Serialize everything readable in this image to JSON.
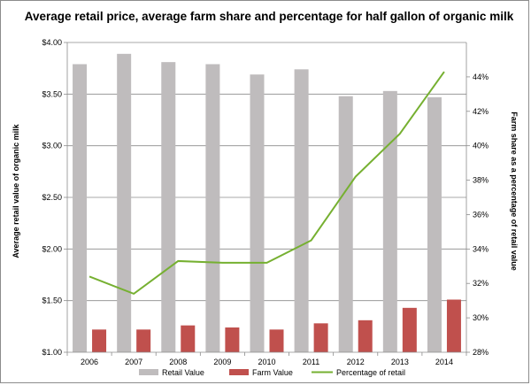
{
  "chart_data": {
    "type": "bar",
    "title": "Average retail price, average farm share and percentage for half gallon of organic milk",
    "categories": [
      "2006",
      "2007",
      "2008",
      "2009",
      "2010",
      "2011",
      "2012",
      "2013",
      "2014"
    ],
    "y_left": {
      "label": "Average retail value of organic milk",
      "range": [
        1.0,
        4.0
      ],
      "ticks": [
        "$1.00",
        "$1.50",
        "$2.00",
        "$2.50",
        "$3.00",
        "$3.50",
        "$4.00"
      ],
      "tick_values": [
        1.0,
        1.5,
        2.0,
        2.5,
        3.0,
        3.5,
        4.0
      ]
    },
    "y_right": {
      "label": "Farm share as a percentage of retail value",
      "range": [
        28,
        46
      ],
      "ticks": [
        "28%",
        "30%",
        "32%",
        "34%",
        "36%",
        "38%",
        "40%",
        "42%",
        "44%"
      ],
      "tick_values": [
        28,
        30,
        32,
        34,
        36,
        38,
        40,
        42,
        44
      ]
    },
    "series": [
      {
        "name": "Retail Value",
        "type": "bar",
        "axis": "left",
        "color": "#bfbcbd",
        "values": [
          3.79,
          3.89,
          3.81,
          3.79,
          3.69,
          3.74,
          3.48,
          3.53,
          3.47
        ]
      },
      {
        "name": "Farm Value",
        "type": "bar",
        "axis": "left",
        "color": "#c0504d",
        "values": [
          1.22,
          1.22,
          1.26,
          1.24,
          1.22,
          1.28,
          1.31,
          1.43,
          1.51
        ]
      },
      {
        "name": "Percentage of retail",
        "type": "line",
        "axis": "right",
        "color": "#76b031",
        "values": [
          32.4,
          31.4,
          33.3,
          33.2,
          33.2,
          34.5,
          38.2,
          40.7,
          44.3
        ]
      }
    ],
    "grid": true,
    "legend": "bottom"
  }
}
